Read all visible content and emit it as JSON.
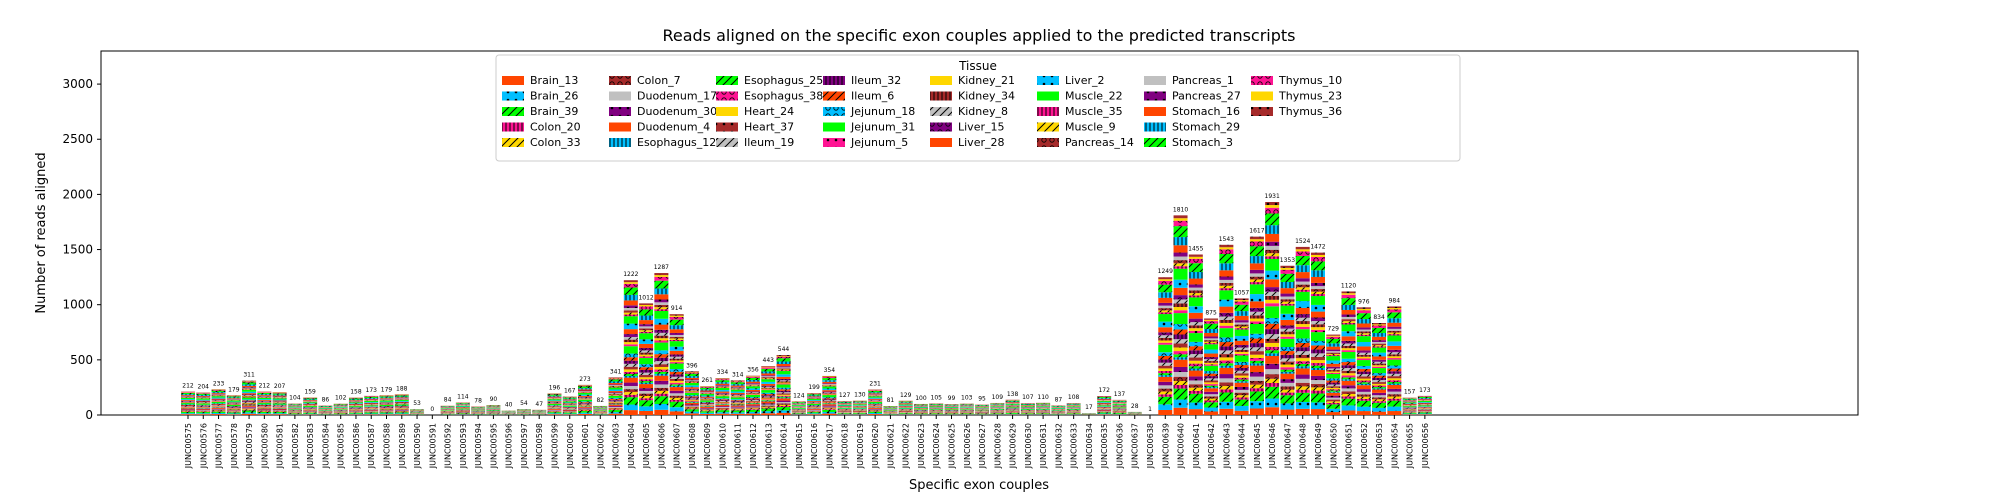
{
  "chart_data": {
    "type": "bar",
    "stacked": true,
    "title": "Reads aligned on the specific exon couples applied to the predicted transcripts",
    "xlabel": "Specific exon couples",
    "ylabel": "Number of reads aligned",
    "ylim": [
      0,
      3300
    ],
    "yticks": [
      0,
      500,
      1000,
      1500,
      2000,
      2500,
      3000
    ],
    "legend": {
      "title": "Tissue",
      "placement": "top-center",
      "columns": 9
    },
    "categories": [
      "JUNC00575",
      "JUNC00576",
      "JUNC00577",
      "JUNC00578",
      "JUNC00579",
      "JUNC00580",
      "JUNC00581",
      "JUNC00582",
      "JUNC00583",
      "JUNC00584",
      "JUNC00585",
      "JUNC00586",
      "JUNC00587",
      "JUNC00588",
      "JUNC00589",
      "JUNC00590",
      "JUNC00591",
      "JUNC00592",
      "JUNC00593",
      "JUNC00594",
      "JUNC00595",
      "JUNC00596",
      "JUNC00597",
      "JUNC00598",
      "JUNC00599",
      "JUNC00600",
      "JUNC00601",
      "JUNC00602",
      "JUNC00603",
      "JUNC00604",
      "JUNC00605",
      "JUNC00606",
      "JUNC00607",
      "JUNC00608",
      "JUNC00609",
      "JUNC00610",
      "JUNC00611",
      "JUNC00612",
      "JUNC00613",
      "JUNC00614",
      "JUNC00615",
      "JUNC00616",
      "JUNC00617",
      "JUNC00618",
      "JUNC00619",
      "JUNC00620",
      "JUNC00621",
      "JUNC00622",
      "JUNC00623",
      "JUNC00624",
      "JUNC00625",
      "JUNC00626",
      "JUNC00627",
      "JUNC00628",
      "JUNC00629",
      "JUNC00630",
      "JUNC00631",
      "JUNC00632",
      "JUNC00633",
      "JUNC00634",
      "JUNC00635",
      "JUNC00636",
      "JUNC00637",
      "JUNC00638",
      "JUNC00639",
      "JUNC00640",
      "JUNC00641",
      "JUNC00642",
      "JUNC00643",
      "JUNC00644",
      "JUNC00645",
      "JUNC00646",
      "JUNC00647",
      "JUNC00648",
      "JUNC00649",
      "JUNC00650",
      "JUNC00651",
      "JUNC00652",
      "JUNC00653",
      "JUNC00654",
      "JUNC00655",
      "JUNC00656"
    ],
    "totals": [
      212,
      204,
      233,
      179,
      311,
      212,
      207,
      104,
      159,
      86,
      102,
      158,
      173,
      179,
      188,
      53,
      0,
      84,
      114,
      78,
      90,
      40,
      54,
      47,
      196,
      167,
      273,
      82,
      341,
      1222,
      1012,
      1287,
      914,
      396,
      261,
      334,
      314,
      356,
      443,
      544,
      124,
      199,
      354,
      127,
      130,
      231,
      81,
      129,
      100,
      105,
      99,
      103,
      95,
      109,
      138,
      107,
      110,
      87,
      108,
      17,
      172,
      137,
      28,
      1,
      1249,
      1810,
      1455,
      875,
      1543,
      1057,
      1617,
      1931,
      1353,
      1524,
      1472,
      729,
      1120,
      976,
      834,
      984,
      157,
      173
    ],
    "series": [
      {
        "name": "Brain_13",
        "color": "#ff4500",
        "hatch": "none"
      },
      {
        "name": "Brain_26",
        "color": "#00bfff",
        "hatch": "dots"
      },
      {
        "name": "Brain_39",
        "color": "#00ff00",
        "hatch": "slash"
      },
      {
        "name": "Colon_20",
        "color": "#ff1493",
        "hatch": "vlines"
      },
      {
        "name": "Colon_33",
        "color": "#ffd700",
        "hatch": "slash"
      },
      {
        "name": "Colon_7",
        "color": "#a52a2a",
        "hatch": "circles"
      },
      {
        "name": "Duodenum_17",
        "color": "#c0c0c0",
        "hatch": "none"
      },
      {
        "name": "Duodenum_30",
        "color": "#800080",
        "hatch": "dots"
      },
      {
        "name": "Duodenum_4",
        "color": "#ff4500",
        "hatch": "none"
      },
      {
        "name": "Esophagus_12",
        "color": "#00bfff",
        "hatch": "vlines"
      },
      {
        "name": "Esophagus_25",
        "color": "#00ff00",
        "hatch": "slash"
      },
      {
        "name": "Esophagus_38",
        "color": "#ff1493",
        "hatch": "circles"
      },
      {
        "name": "Heart_24",
        "color": "#ffd700",
        "hatch": "none"
      },
      {
        "name": "Heart_37",
        "color": "#a52a2a",
        "hatch": "dots"
      },
      {
        "name": "Ileum_19",
        "color": "#c0c0c0",
        "hatch": "slash"
      },
      {
        "name": "Ileum_32",
        "color": "#800080",
        "hatch": "vlines"
      },
      {
        "name": "Ileum_6",
        "color": "#ff4500",
        "hatch": "slash"
      },
      {
        "name": "Jejunum_18",
        "color": "#00bfff",
        "hatch": "circles"
      },
      {
        "name": "Jejunum_31",
        "color": "#00ff00",
        "hatch": "none"
      },
      {
        "name": "Jejunum_5",
        "color": "#ff1493",
        "hatch": "dots"
      },
      {
        "name": "Kidney_21",
        "color": "#ffd700",
        "hatch": "none"
      },
      {
        "name": "Kidney_34",
        "color": "#a52a2a",
        "hatch": "vlines"
      },
      {
        "name": "Kidney_8",
        "color": "#c0c0c0",
        "hatch": "slash"
      },
      {
        "name": "Liver_15",
        "color": "#800080",
        "hatch": "circles"
      },
      {
        "name": "Liver_28",
        "color": "#ff4500",
        "hatch": "none"
      },
      {
        "name": "Liver_2",
        "color": "#00bfff",
        "hatch": "dots"
      },
      {
        "name": "Muscle_22",
        "color": "#00ff00",
        "hatch": "none"
      },
      {
        "name": "Muscle_35",
        "color": "#ff1493",
        "hatch": "vlines"
      },
      {
        "name": "Muscle_9",
        "color": "#ffd700",
        "hatch": "slash"
      },
      {
        "name": "Pancreas_14",
        "color": "#a52a2a",
        "hatch": "circles"
      },
      {
        "name": "Pancreas_1",
        "color": "#c0c0c0",
        "hatch": "none"
      },
      {
        "name": "Pancreas_27",
        "color": "#800080",
        "hatch": "dots"
      },
      {
        "name": "Stomach_16",
        "color": "#ff4500",
        "hatch": "none"
      },
      {
        "name": "Stomach_29",
        "color": "#00bfff",
        "hatch": "vlines"
      },
      {
        "name": "Stomach_3",
        "color": "#00ff00",
        "hatch": "slash"
      },
      {
        "name": "Thymus_10",
        "color": "#ff1493",
        "hatch": "circles"
      },
      {
        "name": "Thymus_23",
        "color": "#ffd700",
        "hatch": "none"
      },
      {
        "name": "Thymus_36",
        "color": "#a52a2a",
        "hatch": "dots"
      }
    ]
  }
}
